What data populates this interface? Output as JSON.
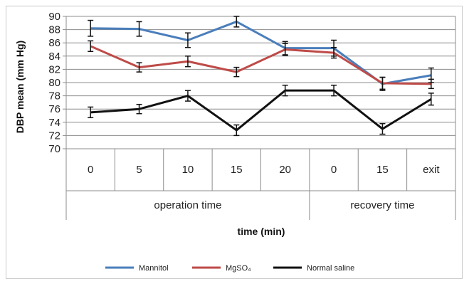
{
  "chart_data": {
    "type": "line",
    "categories": [
      "0",
      "5",
      "10",
      "15",
      "20",
      "0",
      "15",
      "exit"
    ],
    "groups": [
      {
        "label": "operation time",
        "span": 5
      },
      {
        "label": "recovery time",
        "span": 3
      }
    ],
    "xlabel": "time (min)",
    "ylabel": "DBP mean (mm Hg)",
    "ylim": [
      70,
      90
    ],
    "yticks": [
      "70",
      "72",
      "74",
      "76",
      "78",
      "80",
      "82",
      "84",
      "86",
      "88",
      "90"
    ],
    "grid": true,
    "legend_position": "bottom",
    "series": [
      {
        "name": "Mannitol",
        "color": "#4a7ebb",
        "values": [
          88.2,
          88.1,
          86.4,
          89.2,
          85.2,
          85.2,
          79.8,
          81.1
        ],
        "errors": [
          1.2,
          1.1,
          1.1,
          0.8,
          1.0,
          1.2,
          1.0,
          1.1
        ]
      },
      {
        "name": "MgSO₄",
        "color": "#be4b48",
        "values": [
          85.5,
          82.3,
          83.2,
          81.6,
          85.0,
          84.5,
          79.9,
          79.8
        ],
        "errors": [
          0.8,
          0.7,
          0.8,
          0.7,
          0.9,
          0.8,
          0.9,
          0.7
        ]
      },
      {
        "name": "Normal saline",
        "color": "#111111",
        "values": [
          75.5,
          76.0,
          78.0,
          72.8,
          78.8,
          78.8,
          73.0,
          77.5
        ],
        "errors": [
          0.8,
          0.7,
          0.8,
          0.8,
          0.8,
          0.8,
          0.8,
          0.9
        ]
      }
    ]
  }
}
